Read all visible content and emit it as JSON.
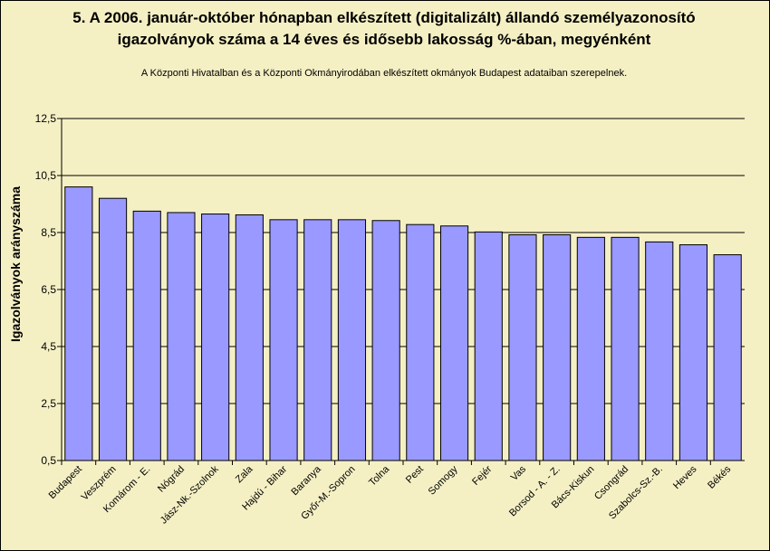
{
  "chart_data": {
    "type": "bar",
    "title_line1": "5. A 2006. január-október hónapban elkészített (digitalizált) állandó személyazonosító",
    "title_line2": "igazolványok száma a 14 éves és idősebb lakosság %-ában, megyénként",
    "subtitle": "A  Központi Hivatalban és a Központi Okmányirodában elkészített  okmányok Budapest adataiban szerepelnek.",
    "ylabel": "Igazolványok arányszáma",
    "xlabel": "",
    "ylim": [
      0.5,
      12.5
    ],
    "yticks": [
      "0,5",
      "2,5",
      "4,5",
      "6,5",
      "8,5",
      "10,5",
      "12,5"
    ],
    "ytick_values": [
      0.5,
      2.5,
      4.5,
      6.5,
      8.5,
      10.5,
      12.5
    ],
    "grid": true,
    "bar_color": "#9999ff",
    "background_color": "#f5f0c4",
    "categories": [
      "Budapest",
      "Veszprém",
      "Komárom - E.",
      "Nógrád",
      "Jász-Nk.-Szolnok",
      "Zala",
      "Hajdú - Bihar",
      "Baranya",
      "Győr-M.-Sopron",
      "Tolna",
      "Pest",
      "Somogy",
      "Fejér",
      "Vas",
      "Borsod - A. - Z.",
      "Bács-Kiskun",
      "Csongrád",
      "Szabolcs-Sz.-B.",
      "Heves",
      "Békés"
    ],
    "values": [
      10.1,
      9.7,
      9.25,
      9.2,
      9.15,
      9.12,
      8.95,
      8.95,
      8.95,
      8.92,
      8.78,
      8.73,
      8.52,
      8.42,
      8.42,
      8.33,
      8.33,
      8.17,
      8.07,
      7.72
    ]
  }
}
